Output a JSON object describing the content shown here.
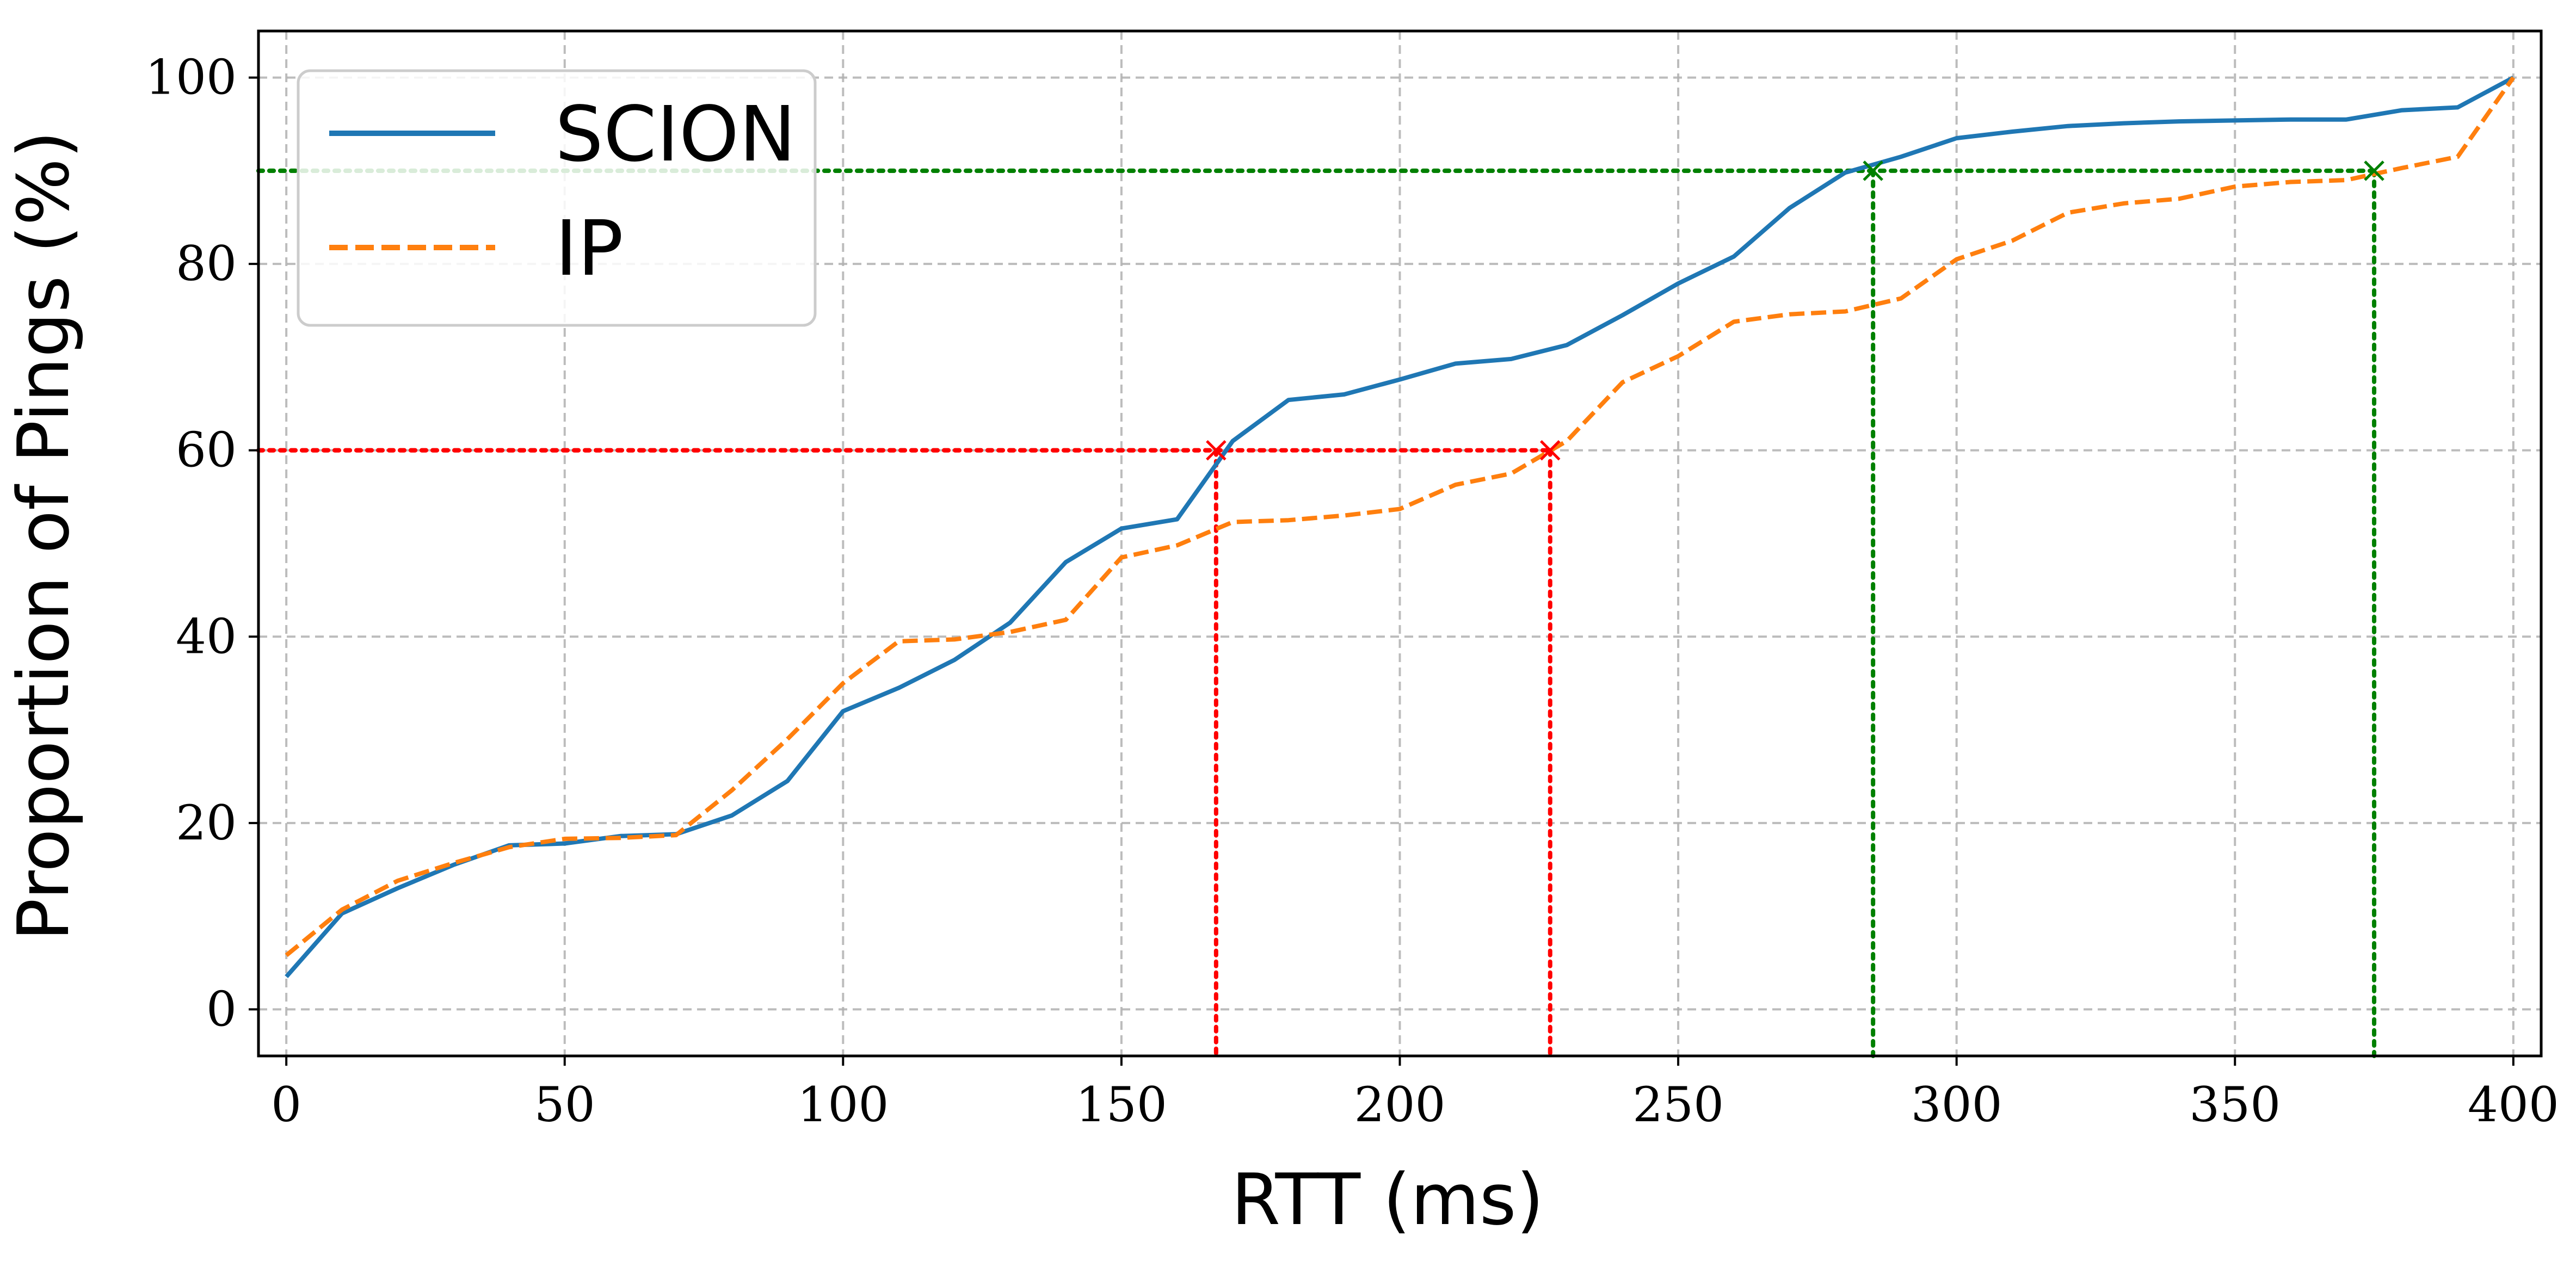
{
  "chart_data": {
    "type": "line",
    "title": "",
    "xlabel": "RTT (ms)",
    "ylabel": "Proportion of Pings (%)",
    "xlim": [
      -5,
      405
    ],
    "ylim": [
      -5,
      105
    ],
    "xticks": [
      0,
      50,
      100,
      150,
      200,
      250,
      300,
      350,
      400
    ],
    "yticks": [
      0,
      20,
      40,
      60,
      80,
      100
    ],
    "xtick_labels": [
      "0",
      "50",
      "100",
      "150",
      "200",
      "250",
      "300",
      "350",
      "400"
    ],
    "ytick_labels": [
      "0",
      "20",
      "40",
      "60",
      "80",
      "100"
    ],
    "grid": true,
    "legend_position": "top-left",
    "series": [
      {
        "name": "SCION",
        "color": "#1f77b4",
        "linestyle": "solid",
        "x": [
          0,
          10,
          20,
          30,
          40,
          50,
          60,
          70,
          80,
          90,
          100,
          110,
          120,
          130,
          140,
          150,
          160,
          170,
          180,
          190,
          200,
          210,
          220,
          230,
          240,
          250,
          260,
          270,
          280,
          290,
          300,
          310,
          320,
          330,
          340,
          350,
          360,
          370,
          380,
          390,
          400
        ],
        "y": [
          3.5,
          10.3,
          13.0,
          15.5,
          17.6,
          17.8,
          18.6,
          18.8,
          20.8,
          24.5,
          32.0,
          34.5,
          37.5,
          41.5,
          48.0,
          51.6,
          52.6,
          61.0,
          65.4,
          66.0,
          67.6,
          69.3,
          69.8,
          71.3,
          74.5,
          77.9,
          80.8,
          86.0,
          89.8,
          91.5,
          93.5,
          94.2,
          94.8,
          95.1,
          95.3,
          95.4,
          95.5,
          95.5,
          96.5,
          96.8,
          100.0
        ]
      },
      {
        "name": "IP",
        "color": "#ff7f0e",
        "linestyle": "dashed",
        "x": [
          0,
          10,
          20,
          30,
          40,
          50,
          60,
          70,
          80,
          90,
          100,
          110,
          120,
          130,
          140,
          150,
          160,
          170,
          180,
          190,
          200,
          210,
          220,
          230,
          240,
          250,
          260,
          270,
          280,
          290,
          300,
          310,
          320,
          330,
          340,
          350,
          360,
          370,
          380,
          390,
          400
        ],
        "y": [
          5.8,
          10.7,
          13.8,
          15.7,
          17.4,
          18.3,
          18.4,
          18.7,
          23.5,
          29.0,
          35.0,
          39.5,
          39.7,
          40.5,
          41.8,
          48.5,
          49.8,
          52.3,
          52.5,
          53.0,
          53.7,
          56.3,
          57.5,
          61.0,
          67.3,
          70.1,
          73.8,
          74.6,
          74.9,
          76.3,
          80.5,
          82.5,
          85.5,
          86.5,
          87.0,
          88.3,
          88.8,
          89.0,
          90.3,
          91.5,
          100.0
        ]
      }
    ],
    "reference_lines": [
      {
        "color": "#ff0000",
        "y": 60,
        "x": 167
      },
      {
        "color": "#ff0000",
        "y": 60,
        "x": 227
      },
      {
        "color": "#008000",
        "y": 90,
        "x": 285
      },
      {
        "color": "#008000",
        "y": 90,
        "x": 375
      }
    ]
  }
}
